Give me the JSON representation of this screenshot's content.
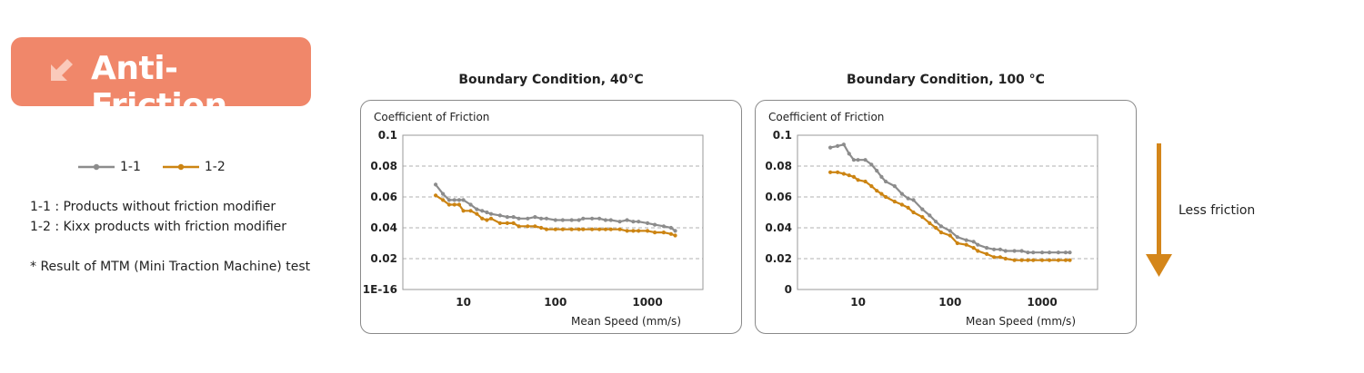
{
  "badge": {
    "title": "Anti-Friction",
    "icon": "arrow-down-left-icon",
    "color": "#f0876a"
  },
  "legend": [
    {
      "label": "1-1",
      "color": "#8c8c8c"
    },
    {
      "label": "1-2",
      "color": "#cc8412"
    }
  ],
  "notes": {
    "line1": "1-1 : Products without friction modifier",
    "line2": "1-2 : Kixx products with friction modifier",
    "line3": "* Result of MTM (Mini Traction Machine) test"
  },
  "indicator": {
    "label": "Less friction",
    "icon": "arrow-down-icon",
    "color": "#d4861a"
  },
  "chart_data": [
    {
      "type": "line",
      "title": "Boundary Condition, 40°C",
      "ylabel": "Coefficient of Friction",
      "xlabel": "Mean Speed (mm/s)",
      "x_scale": "log",
      "xlim": [
        2.2,
        4000
      ],
      "ylim": [
        0,
        0.1
      ],
      "yticks": [
        "1E-16",
        "0.02",
        "0.04",
        "0.06",
        "0.08",
        "0.1"
      ],
      "xticks": [
        "10",
        "100",
        "1000"
      ],
      "grid": "horizontal-dashed",
      "x": [
        5,
        6,
        7,
        8,
        9,
        10,
        12,
        14,
        16,
        18,
        20,
        25,
        30,
        35,
        40,
        50,
        60,
        70,
        80,
        100,
        120,
        150,
        180,
        200,
        250,
        300,
        350,
        400,
        500,
        600,
        700,
        800,
        1000,
        1200,
        1500,
        1800,
        2000
      ],
      "series": [
        {
          "name": "1-1",
          "color": "#8c8c8c",
          "values": [
            0.068,
            0.062,
            0.058,
            0.058,
            0.058,
            0.058,
            0.055,
            0.052,
            0.051,
            0.05,
            0.049,
            0.048,
            0.047,
            0.047,
            0.046,
            0.046,
            0.047,
            0.046,
            0.046,
            0.045,
            0.045,
            0.045,
            0.045,
            0.046,
            0.046,
            0.046,
            0.045,
            0.045,
            0.044,
            0.045,
            0.044,
            0.044,
            0.043,
            0.042,
            0.041,
            0.04,
            0.038
          ]
        },
        {
          "name": "1-2",
          "color": "#cc8412",
          "values": [
            0.061,
            0.058,
            0.055,
            0.055,
            0.055,
            0.051,
            0.051,
            0.049,
            0.046,
            0.045,
            0.046,
            0.043,
            0.043,
            0.043,
            0.041,
            0.041,
            0.041,
            0.04,
            0.039,
            0.039,
            0.039,
            0.039,
            0.039,
            0.039,
            0.039,
            0.039,
            0.039,
            0.039,
            0.039,
            0.038,
            0.038,
            0.038,
            0.038,
            0.037,
            0.037,
            0.036,
            0.035
          ]
        }
      ]
    },
    {
      "type": "line",
      "title": "Boundary Condition, 100 °C",
      "ylabel": "Coefficient of Friction",
      "xlabel": "Mean Speed (mm/s)",
      "x_scale": "log",
      "xlim": [
        2.2,
        4000
      ],
      "ylim": [
        0,
        0.1
      ],
      "yticks": [
        "0",
        "0.02",
        "0.04",
        "0.06",
        "0.08",
        "0.1"
      ],
      "xticks": [
        "10",
        "100",
        "1000"
      ],
      "grid": "horizontal-dashed",
      "x": [
        5,
        6,
        7,
        8,
        9,
        10,
        12,
        14,
        16,
        18,
        20,
        25,
        30,
        35,
        40,
        50,
        60,
        70,
        80,
        100,
        120,
        150,
        180,
        200,
        250,
        300,
        350,
        400,
        500,
        600,
        700,
        800,
        1000,
        1200,
        1500,
        1800,
        2000
      ],
      "series": [
        {
          "name": "1-1",
          "color": "#8c8c8c",
          "values": [
            0.092,
            0.093,
            0.094,
            0.088,
            0.084,
            0.084,
            0.084,
            0.081,
            0.077,
            0.073,
            0.07,
            0.067,
            0.062,
            0.059,
            0.058,
            0.052,
            0.048,
            0.044,
            0.041,
            0.038,
            0.034,
            0.032,
            0.031,
            0.029,
            0.027,
            0.026,
            0.026,
            0.025,
            0.025,
            0.025,
            0.024,
            0.024,
            0.024,
            0.024,
            0.024,
            0.024,
            0.024
          ]
        },
        {
          "name": "1-2",
          "color": "#cc8412",
          "values": [
            0.076,
            0.076,
            0.075,
            0.074,
            0.073,
            0.071,
            0.07,
            0.067,
            0.064,
            0.062,
            0.06,
            0.057,
            0.055,
            0.053,
            0.05,
            0.047,
            0.043,
            0.04,
            0.037,
            0.035,
            0.03,
            0.029,
            0.027,
            0.025,
            0.023,
            0.021,
            0.021,
            0.02,
            0.019,
            0.019,
            0.019,
            0.019,
            0.019,
            0.019,
            0.019,
            0.019,
            0.019
          ]
        }
      ]
    }
  ]
}
